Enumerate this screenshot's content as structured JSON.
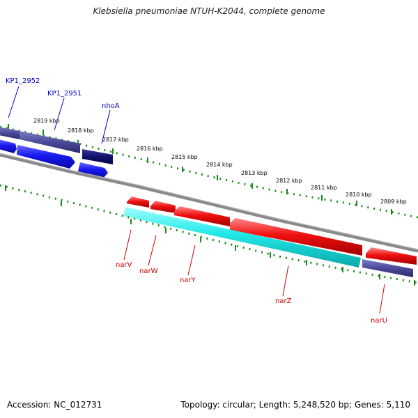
{
  "title": "Klebsiella pneumoniae NTUH-K2044, complete genome",
  "footer": {
    "accession": "Accession: NC_012731",
    "topology": "Topology: circular; Length: 5,248,520 bp; Genes: 5,110"
  },
  "colors": {
    "background": "#ffffff",
    "backbone": "#808080",
    "tick": "#1a8a1a",
    "plus_gene_label": "#0000cc",
    "minus_gene_label": "#cc0000",
    "cds_forward": "#1010f0",
    "cds_reverse": "#f01010",
    "orf_forward": "#4a4a9a",
    "orf_forward_dark": "#10106e",
    "orf_reverse": "#20e8e8"
  },
  "ruler": {
    "unit": "kbp",
    "labels": [
      "2819 kbp",
      "2818 kbp",
      "2817 kbp",
      "2816 kbp",
      "2815 kbp",
      "2814 kbp",
      "2813 kbp",
      "2812 kbp",
      "2811 kbp",
      "2810 kbp",
      "2809 kbp"
    ]
  },
  "genes": {
    "forward": [
      "KP1_2952",
      "KP1_2951",
      "nhoA"
    ],
    "reverse": [
      "narV",
      "narW",
      "narY",
      "narZ",
      "narU"
    ]
  }
}
